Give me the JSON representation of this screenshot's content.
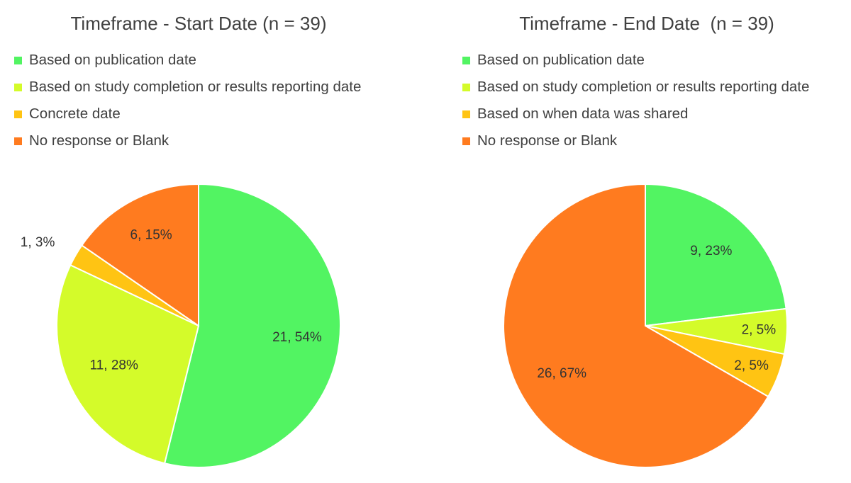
{
  "chart_data": [
    {
      "type": "pie",
      "title": "Timeframe - Start Date (n = 39)",
      "legend_position": "top-left",
      "categories": [
        "Based on publication date",
        "Based on study completion or results reporting date",
        "Concrete date",
        "No response or Blank"
      ],
      "values": [
        21,
        11,
        1,
        6
      ],
      "percentages": [
        54,
        28,
        3,
        15
      ],
      "data_labels": [
        "21, 54%",
        "11, 28%",
        "1, 3%",
        "6, 15%"
      ],
      "colors": [
        "#52f462",
        "#d4fb2a",
        "#ffc413",
        "#ff7b1f"
      ]
    },
    {
      "type": "pie",
      "title": "Timeframe - End Date  (n = 39)",
      "legend_position": "top-left",
      "categories": [
        "Based on publication date",
        "Based on study completion or results reporting date",
        "Based on when data was shared",
        "No response or Blank"
      ],
      "values": [
        9,
        2,
        2,
        26
      ],
      "percentages": [
        23,
        5,
        5,
        67
      ],
      "data_labels": [
        "9, 23%",
        "2, 5%",
        "2, 5%",
        "26, 67%"
      ],
      "colors": [
        "#52f462",
        "#d4fb2a",
        "#ffc413",
        "#ff7b1f"
      ]
    }
  ]
}
